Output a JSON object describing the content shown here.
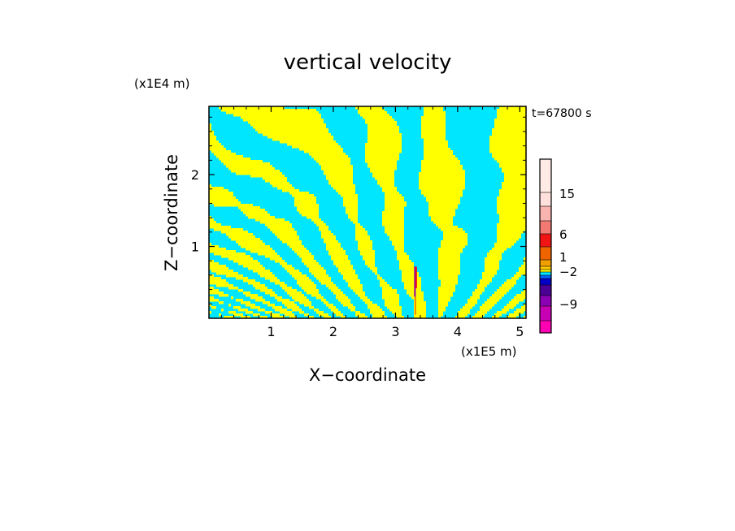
{
  "chart_data": {
    "type": "heatmap",
    "title": "vertical velocity",
    "xlabel": "X−coordinate",
    "ylabel": "Z−coordinate",
    "x_scale_label": "(x1E5 m)",
    "y_scale_label": "(x1E4 m)",
    "time_label": "t=67800 s",
    "xlim": [
      0,
      5.1
    ],
    "ylim": [
      0,
      2.95
    ],
    "x_ticks": [
      1,
      2,
      3,
      4,
      5
    ],
    "y_ticks": [
      1,
      2
    ],
    "x_tick_labels": [
      "1",
      "2",
      "3",
      "4",
      "5"
    ],
    "y_tick_labels": [
      "1",
      "2"
    ],
    "dominant_colors": {
      "negative_small": "#00e6ff",
      "positive_small": "#ffff00"
    },
    "colorbar": {
      "labels": [
        {
          "text": "15",
          "value": 15
        },
        {
          "text": "6",
          "value": 6
        },
        {
          "text": "1",
          "value": 1
        },
        {
          "text": "−2",
          "value": -2
        },
        {
          "text": "−9",
          "value": -9
        }
      ],
      "bins": [
        {
          "color": "#ffeae6"
        },
        {
          "color": "#ffe0dc"
        },
        {
          "color": "#f9b4b0"
        },
        {
          "color": "#f27a72"
        },
        {
          "color": "#f01414"
        },
        {
          "color": "#f06400"
        },
        {
          "color": "#f0a000"
        },
        {
          "color": "#ffc800"
        },
        {
          "color": "#ffff00"
        },
        {
          "color": "#00e6ff"
        },
        {
          "color": "#0064ff"
        },
        {
          "color": "#0000c8"
        },
        {
          "color": "#4b0096"
        },
        {
          "color": "#8c00b4"
        },
        {
          "color": "#c800b4"
        },
        {
          "color": "#ff00b4"
        }
      ]
    }
  }
}
